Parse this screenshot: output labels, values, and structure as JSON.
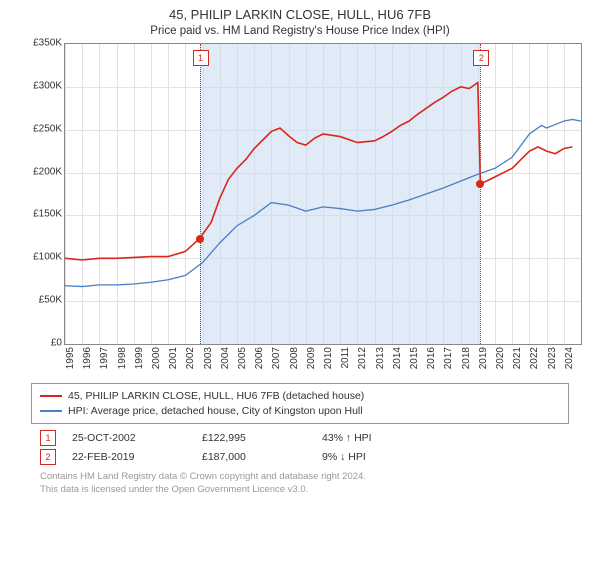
{
  "title": "45, PHILIP LARKIN CLOSE, HULL, HU6 7FB",
  "subtitle": "Price paid vs. HM Land Registry's House Price Index (HPI)",
  "chart": {
    "type": "line",
    "xlim": [
      1995,
      2025
    ],
    "ylim": [
      0,
      350000
    ],
    "ytick_step": 50000,
    "yticks": [
      "£0",
      "£50K",
      "£100K",
      "£150K",
      "£200K",
      "£250K",
      "£300K",
      "£350K"
    ],
    "xticks": [
      1995,
      1996,
      1997,
      1998,
      1999,
      2000,
      2001,
      2002,
      2003,
      2004,
      2005,
      2006,
      2007,
      2008,
      2009,
      2010,
      2011,
      2012,
      2013,
      2014,
      2015,
      2016,
      2017,
      2018,
      2019,
      2020,
      2021,
      2022,
      2023,
      2024
    ],
    "grid_color": "#e2e2e2",
    "border_color": "#888888",
    "background_color": "#ffffff",
    "shade_color": "rgba(200,218,240,0.55)",
    "shade_range": [
      2002.82,
      2019.15
    ],
    "label_fontsize": 10,
    "series": [
      {
        "name": "property",
        "label": "45, PHILIP LARKIN CLOSE, HULL, HU6 7FB (detached house)",
        "color": "#d9271a",
        "line_width": 1.6,
        "xy": [
          [
            1995,
            100000
          ],
          [
            1996,
            98000
          ],
          [
            1997,
            100000
          ],
          [
            1998,
            100000
          ],
          [
            1999,
            101000
          ],
          [
            2000,
            102000
          ],
          [
            2001,
            102000
          ],
          [
            2002,
            108000
          ],
          [
            2002.82,
            122995
          ],
          [
            2003.5,
            142000
          ],
          [
            2004,
            170000
          ],
          [
            2004.5,
            192000
          ],
          [
            2005,
            205000
          ],
          [
            2005.5,
            215000
          ],
          [
            2006,
            228000
          ],
          [
            2006.5,
            238000
          ],
          [
            2007,
            248000
          ],
          [
            2007.5,
            252000
          ],
          [
            2008,
            243000
          ],
          [
            2008.5,
            235000
          ],
          [
            2009,
            232000
          ],
          [
            2009.5,
            240000
          ],
          [
            2010,
            245000
          ],
          [
            2011,
            242000
          ],
          [
            2012,
            235000
          ],
          [
            2013,
            237000
          ],
          [
            2013.5,
            242000
          ],
          [
            2014,
            248000
          ],
          [
            2014.5,
            255000
          ],
          [
            2015,
            260000
          ],
          [
            2015.5,
            268000
          ],
          [
            2016,
            275000
          ],
          [
            2016.5,
            282000
          ],
          [
            2017,
            288000
          ],
          [
            2017.5,
            295000
          ],
          [
            2018,
            300000
          ],
          [
            2018.5,
            298000
          ],
          [
            2019,
            305000
          ],
          [
            2019.15,
            187000
          ],
          [
            2019.5,
            190000
          ],
          [
            2020,
            195000
          ],
          [
            2020.5,
            200000
          ],
          [
            2021,
            205000
          ],
          [
            2021.5,
            215000
          ],
          [
            2022,
            225000
          ],
          [
            2022.5,
            230000
          ],
          [
            2023,
            225000
          ],
          [
            2023.5,
            222000
          ],
          [
            2024,
            228000
          ],
          [
            2024.5,
            230000
          ]
        ]
      },
      {
        "name": "hpi",
        "label": "HPI: Average price, detached house, City of Kingston upon Hull",
        "color": "#4a7fc4",
        "line_width": 1.3,
        "xy": [
          [
            1995,
            68000
          ],
          [
            1996,
            67000
          ],
          [
            1997,
            69000
          ],
          [
            1998,
            69000
          ],
          [
            1999,
            70000
          ],
          [
            2000,
            72000
          ],
          [
            2001,
            75000
          ],
          [
            2002,
            80000
          ],
          [
            2003,
            95000
          ],
          [
            2004,
            118000
          ],
          [
            2005,
            138000
          ],
          [
            2006,
            150000
          ],
          [
            2007,
            165000
          ],
          [
            2008,
            162000
          ],
          [
            2009,
            155000
          ],
          [
            2010,
            160000
          ],
          [
            2011,
            158000
          ],
          [
            2012,
            155000
          ],
          [
            2013,
            157000
          ],
          [
            2014,
            162000
          ],
          [
            2015,
            168000
          ],
          [
            2016,
            175000
          ],
          [
            2017,
            182000
          ],
          [
            2018,
            190000
          ],
          [
            2019,
            198000
          ],
          [
            2020,
            205000
          ],
          [
            2021,
            218000
          ],
          [
            2022,
            245000
          ],
          [
            2022.7,
            255000
          ],
          [
            2023,
            252000
          ],
          [
            2023.5,
            256000
          ],
          [
            2024,
            260000
          ],
          [
            2024.5,
            262000
          ],
          [
            2025,
            260000
          ]
        ]
      }
    ],
    "sale_markers": [
      {
        "n": "1",
        "x": 2002.82,
        "y": 122995,
        "dot_color": "#d9271a"
      },
      {
        "n": "2",
        "x": 2019.15,
        "y": 187000,
        "dot_color": "#d9271a"
      }
    ]
  },
  "legend": {
    "items": [
      {
        "color": "#d9271a",
        "label": "45, PHILIP LARKIN CLOSE, HULL, HU6 7FB (detached house)"
      },
      {
        "color": "#4a7fc4",
        "label": "HPI: Average price, detached house, City of Kingston upon Hull"
      }
    ]
  },
  "sales": [
    {
      "n": "1",
      "date": "25-OCT-2002",
      "price": "£122,995",
      "delta": "43% ↑ HPI"
    },
    {
      "n": "2",
      "date": "22-FEB-2019",
      "price": "£187,000",
      "delta": "9% ↓ HPI"
    }
  ],
  "footer": {
    "l1": "Contains HM Land Registry data © Crown copyright and database right 2024.",
    "l2": "This data is licensed under the Open Government Licence v3.0."
  }
}
